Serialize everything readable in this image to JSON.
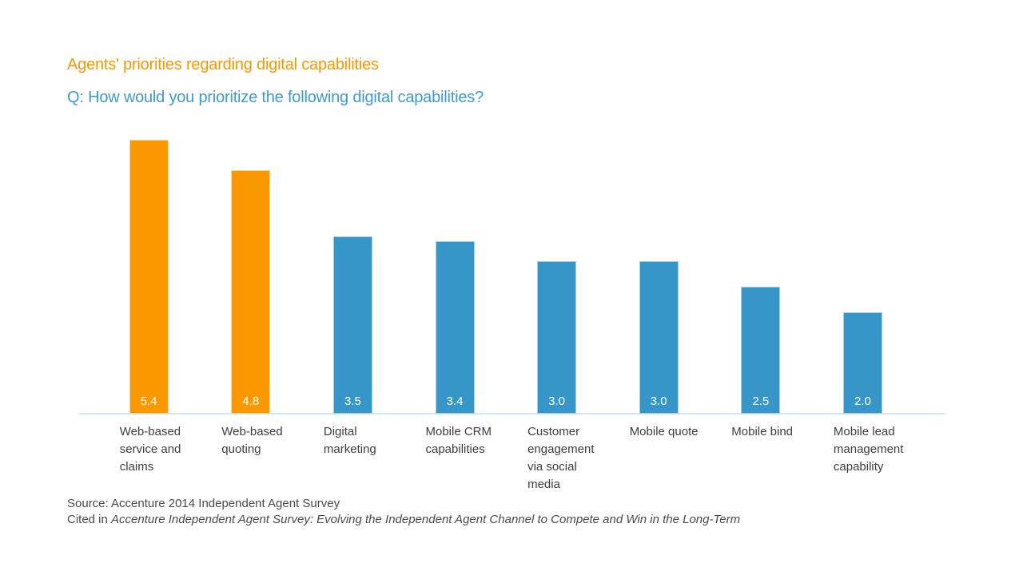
{
  "header": {
    "title": "Agents' priorities regarding digital capabilities",
    "subtitle": "Q: How would you prioritize the following digital capabilities?"
  },
  "chart_data": {
    "type": "bar",
    "title": "Agents' priorities regarding digital capabilities",
    "subtitle": "Q: How would you prioritize the following digital capabilities?",
    "categories": [
      "Web-based service and claims",
      "Web-based quoting",
      "Digital marketing",
      "Mobile CRM capabilities",
      "Customer engagement via social media",
      "Mobile quote",
      "Mobile bind",
      "Mobile lead management capability"
    ],
    "category_lines": [
      "Web-based\nservice and\nclaims",
      "Web-based\nquoting",
      "Digital\nmarketing",
      "Mobile CRM\ncapabilities",
      "Customer\nengagement\nvia social\nmedia",
      "Mobile quote",
      "Mobile bind",
      "Mobile lead\nmanagement\ncapability"
    ],
    "values": [
      5.4,
      4.8,
      3.5,
      3.4,
      3.0,
      3.0,
      2.5,
      2.0
    ],
    "bar_color_keys": [
      "orange",
      "orange",
      "blue",
      "blue",
      "blue",
      "blue",
      "blue",
      "blue"
    ],
    "ylim": [
      0,
      5.4
    ],
    "grid": false,
    "legend": null,
    "value_labels_inside_bars": true,
    "colors": {
      "orange": "#F99800",
      "blue": "#3696C8",
      "axis_line": "#CEE7F4",
      "title_text": "#F79800",
      "subtitle_text": "#3E9ACD",
      "value_label_text": "#FFFFFF",
      "category_label_text": "#3D3D3D",
      "source_text": "#4A4A4A"
    }
  },
  "source": {
    "line1": "Source: Accenture 2014 Independent Agent Survey",
    "line2_prefix": "Cited in ",
    "line2_italic": "Accenture Independent Agent Survey: Evolving the Independent Agent Channel to Compete and Win in the Long-Term"
  }
}
